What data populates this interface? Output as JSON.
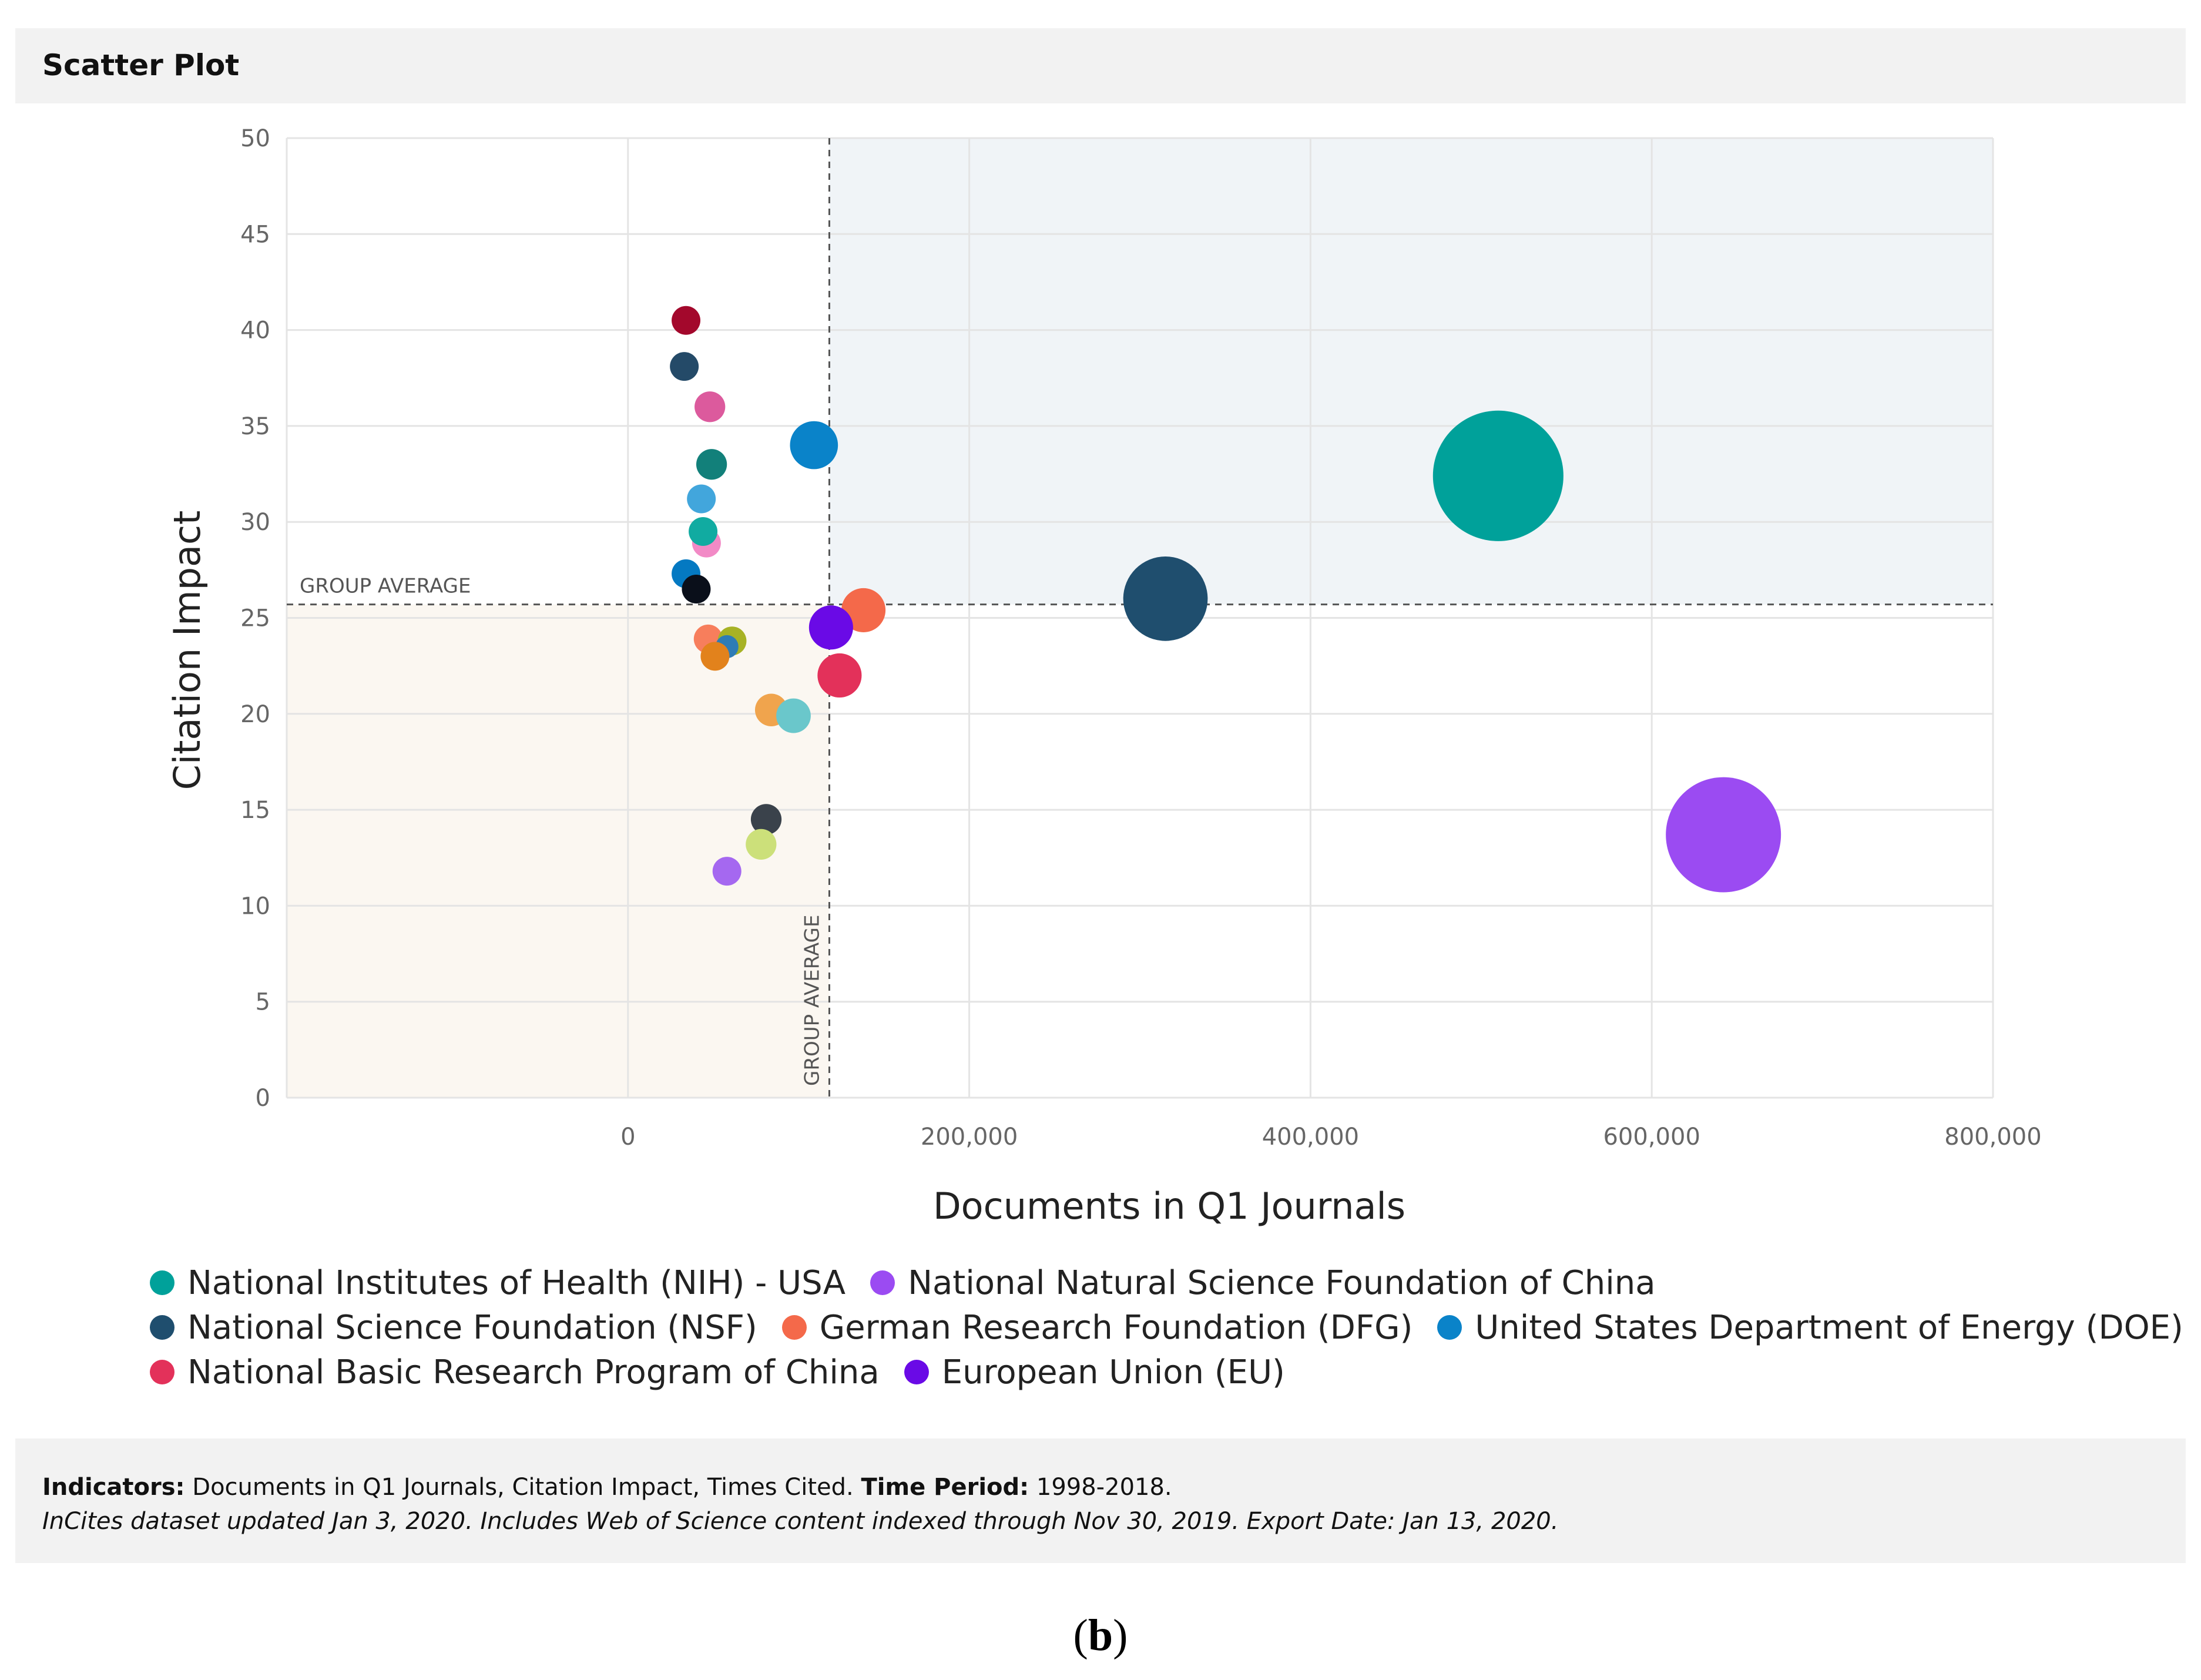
{
  "header": {
    "title": "Scatter Plot"
  },
  "chart_data": {
    "type": "scatter",
    "subtype": "bubble",
    "title": "Scatter Plot",
    "xlabel": "Documents in Q1 Journals",
    "ylabel": "Citation Impact",
    "xlim": [
      -200000,
      800000
    ],
    "ylim": [
      0,
      50
    ],
    "xticks": [
      0,
      200000,
      400000,
      600000,
      800000
    ],
    "xtick_labels": [
      "0",
      "200,000",
      "400,000",
      "600,000",
      "800,000"
    ],
    "yticks": [
      0,
      5,
      10,
      15,
      20,
      25,
      30,
      35,
      40,
      45,
      50
    ],
    "ytick_labels": [
      "0",
      "5",
      "10",
      "15",
      "20",
      "25",
      "30",
      "35",
      "40",
      "45",
      "50"
    ],
    "grid": true,
    "group_average": {
      "x": 118000,
      "y": 25.7,
      "label_h": "GROUP AVERAGE",
      "label_v": "GROUP AVERAGE"
    },
    "series": [
      {
        "name": "National Institutes of Health (NIH) - USA",
        "color": "#00a19a",
        "x": 510000,
        "y": 32.4,
        "r": 3.4,
        "legend": true
      },
      {
        "name": "National Natural Science Foundation of China",
        "color": "#9b4bf2",
        "x": 642000,
        "y": 13.7,
        "r": 3.0,
        "legend": true
      },
      {
        "name": "National Science Foundation (NSF)",
        "color": "#1f4e6e",
        "x": 315000,
        "y": 26.0,
        "r": 2.2,
        "legend": true
      },
      {
        "name": "German Research Foundation (DFG)",
        "color": "#f4694a",
        "x": 138000,
        "y": 25.4,
        "r": 1.15,
        "legend": true
      },
      {
        "name": "United States Department of Energy (DOE)",
        "color": "#0a83c9",
        "x": 109000,
        "y": 34.0,
        "r": 1.25,
        "legend": true
      },
      {
        "name": "National Basic Research Program of China",
        "color": "#e3315a",
        "x": 124000,
        "y": 22.0,
        "r": 1.15,
        "legend": true
      },
      {
        "name": "European Union (EU)",
        "color": "#6a0ae6",
        "x": 119000,
        "y": 24.5,
        "r": 1.15,
        "legend": true
      },
      {
        "name": "",
        "color": "#a3082c",
        "x": 34000,
        "y": 40.5,
        "r": 0.75,
        "legend": false
      },
      {
        "name": "",
        "color": "#244a68",
        "x": 33000,
        "y": 38.1,
        "r": 0.75,
        "legend": false
      },
      {
        "name": "",
        "color": "#dc5a9d",
        "x": 48000,
        "y": 36.0,
        "r": 0.8,
        "legend": false
      },
      {
        "name": "",
        "color": "#12807a",
        "x": 49000,
        "y": 33.0,
        "r": 0.8,
        "legend": false
      },
      {
        "name": "",
        "color": "#42a6dc",
        "x": 43000,
        "y": 31.2,
        "r": 0.75,
        "legend": false
      },
      {
        "name": "",
        "color": "#f28ac6",
        "x": 46000,
        "y": 28.9,
        "r": 0.75,
        "legend": false
      },
      {
        "name": "",
        "color": "#11aba1",
        "x": 44000,
        "y": 29.5,
        "r": 0.75,
        "legend": false
      },
      {
        "name": "",
        "color": "#0479c2",
        "x": 34000,
        "y": 27.3,
        "r": 0.75,
        "legend": false
      },
      {
        "name": "",
        "color": "#0a0f1a",
        "x": 40000,
        "y": 26.5,
        "r": 0.75,
        "legend": false
      },
      {
        "name": "",
        "color": "#f77e5c",
        "x": 47000,
        "y": 23.9,
        "r": 0.75,
        "legend": false
      },
      {
        "name": "",
        "color": "#a7b225",
        "x": 61000,
        "y": 23.8,
        "r": 0.75,
        "legend": false
      },
      {
        "name": "",
        "color": "#2e7cb6",
        "x": 58000,
        "y": 23.5,
        "r": 0.6,
        "legend": false
      },
      {
        "name": "",
        "color": "#e2821c",
        "x": 51000,
        "y": 23.0,
        "r": 0.75,
        "legend": false
      },
      {
        "name": "",
        "color": "#f0a44d",
        "x": 84000,
        "y": 20.2,
        "r": 0.85,
        "legend": false
      },
      {
        "name": "",
        "color": "#6ac7cb",
        "x": 97000,
        "y": 19.9,
        "r": 0.9,
        "legend": false
      },
      {
        "name": "",
        "color": "#3a424b",
        "x": 81000,
        "y": 14.5,
        "r": 0.8,
        "legend": false
      },
      {
        "name": "",
        "color": "#cce07a",
        "x": 78000,
        "y": 13.2,
        "r": 0.8,
        "legend": false
      },
      {
        "name": "",
        "color": "#a568f0",
        "x": 58000,
        "y": 11.8,
        "r": 0.75,
        "legend": false
      }
    ]
  },
  "legend": {
    "rows": [
      [
        {
          "label": "National Institutes of Health (NIH) - USA",
          "color": "#00a19a"
        },
        {
          "label": "National Natural Science Foundation of China",
          "color": "#9b4bf2"
        }
      ],
      [
        {
          "label": "National Science Foundation (NSF)",
          "color": "#1f4e6e"
        },
        {
          "label": "German Research Foundation (DFG)",
          "color": "#f4694a"
        },
        {
          "label": "United States Department of Energy (DOE)",
          "color": "#0a83c9"
        }
      ],
      [
        {
          "label": "National Basic Research Program of China",
          "color": "#e3315a"
        },
        {
          "label": "European Union (EU)",
          "color": "#6a0ae6"
        }
      ]
    ]
  },
  "footer": {
    "indicators_label": "Indicators:",
    "indicators_value": " Documents in Q1 Journals, Citation Impact, Times Cited. ",
    "period_label": "Time Period:",
    "period_value": " 1998-2018.",
    "note": "InCites dataset updated Jan 3, 2020. Includes Web of Science content indexed through Nov 30, 2019. Export Date: Jan 13, 2020."
  },
  "caption": {
    "open": "(",
    "letter": "b",
    "close": ")"
  }
}
